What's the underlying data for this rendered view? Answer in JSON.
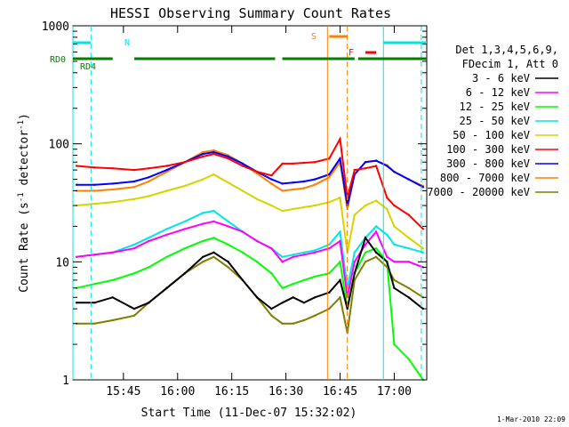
{
  "chart_data": {
    "type": "line",
    "title": "HESSI Observing Summary Count Rates",
    "xlabel": "Start Time (11-Dec-07 15:32:02)",
    "ylabel_main": "Count Rate (s",
    "ylabel_sup1": "-1",
    "ylabel_mid": " detector",
    "ylabel_sup2": "-1",
    "ylabel_end": ")",
    "y_scale": "log",
    "ylim": [
      1,
      1000
    ],
    "xlim_minutes": [
      15.533,
      18.267
    ],
    "x_range_minutes_note": "x values are minutes after 15:32:02 converted to clock time in ticks",
    "xticks": [
      {
        "value": 13,
        "label": "15:45"
      },
      {
        "value": 28,
        "label": "16:00"
      },
      {
        "value": 43,
        "label": "16:15"
      },
      {
        "value": 58,
        "label": "16:30"
      },
      {
        "value": 73,
        "label": "16:45"
      },
      {
        "value": 88,
        "label": "17:00"
      }
    ],
    "yticks": [
      {
        "value": 1,
        "label": "1"
      },
      {
        "value": 10,
        "label": "10"
      },
      {
        "value": 100,
        "label": "100"
      },
      {
        "value": 1000,
        "label": "1000"
      }
    ],
    "x_domain": [
      -1,
      97
    ],
    "legend_placement": "right",
    "legend_header": [
      "Det 1,3,4,5,6,9,",
      "FDecim 1, Att 0"
    ],
    "footer_date": "1-Mar-2010 22:09",
    "flags": [
      {
        "label": "N",
        "color": "#00e5e5"
      },
      {
        "label": "S",
        "color": "#ff8000"
      },
      {
        "label": "F",
        "color": "#ff0000"
      },
      {
        "label": "RD0",
        "color": "#007f00"
      },
      {
        "label": "RD4",
        "color": "#007f00"
      }
    ],
    "series": [
      {
        "name": "3 - 6 keV",
        "color": "#000000",
        "x": [
          0,
          5,
          10,
          16,
          20,
          25,
          30,
          35,
          38,
          42,
          46,
          50,
          54,
          57,
          60,
          63,
          66,
          70,
          73,
          75,
          77,
          80,
          83,
          86,
          88,
          92,
          96
        ],
        "y": [
          4.5,
          4.5,
          5,
          4,
          4.5,
          6,
          8,
          11,
          12,
          10,
          7,
          5,
          4,
          4.5,
          5,
          4.5,
          5,
          5.5,
          7,
          4,
          8,
          16,
          12,
          10,
          6,
          5,
          4
        ]
      },
      {
        "name": "6 - 12 keV",
        "color": "#ff00ff",
        "x": [
          0,
          5,
          10,
          16,
          20,
          25,
          30,
          35,
          38,
          42,
          46,
          50,
          54,
          57,
          60,
          63,
          66,
          70,
          73,
          75,
          77,
          80,
          83,
          86,
          88,
          92,
          96
        ],
        "y": [
          11,
          11.5,
          12,
          13,
          15,
          17,
          19,
          21,
          22,
          20,
          18,
          15,
          13,
          10,
          11,
          11.5,
          12,
          13,
          15,
          5,
          10,
          14,
          18,
          11,
          10,
          10,
          9
        ]
      },
      {
        "name": "12 - 25 keV",
        "color": "#00ff00",
        "x": [
          0,
          5,
          10,
          16,
          20,
          25,
          30,
          35,
          38,
          42,
          46,
          50,
          54,
          57,
          60,
          63,
          66,
          70,
          73,
          75,
          77,
          80,
          83,
          86,
          88,
          92,
          96
        ],
        "y": [
          6,
          6.5,
          7,
          8,
          9,
          11,
          13,
          15,
          16,
          14,
          12,
          10,
          8,
          6,
          6.5,
          7,
          7.5,
          8,
          10,
          4,
          8,
          12,
          13,
          10,
          2,
          1.5,
          1
        ]
      },
      {
        "name": "25 - 50 keV",
        "color": "#00e5e5",
        "x": [
          0,
          5,
          10,
          16,
          20,
          25,
          30,
          35,
          38,
          42,
          46,
          50,
          54,
          57,
          60,
          63,
          66,
          70,
          73,
          75,
          77,
          80,
          83,
          86,
          88,
          92,
          96
        ],
        "y": [
          11,
          11.5,
          12,
          14,
          16,
          19,
          22,
          26,
          27,
          22,
          18,
          15,
          13,
          11,
          11.5,
          12,
          12.5,
          14,
          18,
          6,
          12,
          16,
          20,
          17,
          14,
          13,
          12
        ]
      },
      {
        "name": "50 - 100 keV",
        "color": "#d4d400",
        "x": [
          0,
          5,
          10,
          16,
          20,
          25,
          30,
          35,
          38,
          42,
          46,
          50,
          54,
          57,
          60,
          63,
          66,
          70,
          73,
          75,
          77,
          80,
          83,
          86,
          88,
          92,
          96
        ],
        "y": [
          30,
          31,
          32,
          34,
          36,
          40,
          44,
          50,
          55,
          47,
          40,
          34,
          30,
          27,
          28,
          29,
          30,
          32,
          35,
          12,
          25,
          30,
          33,
          28,
          20,
          16,
          13
        ]
      },
      {
        "name": "100 - 300 keV",
        "color": "#ff0000",
        "x": [
          0,
          5,
          10,
          16,
          20,
          25,
          30,
          35,
          38,
          42,
          46,
          50,
          54,
          57,
          60,
          63,
          66,
          70,
          73,
          75,
          77,
          80,
          83,
          86,
          88,
          92,
          96
        ],
        "y": [
          65,
          63,
          62,
          60,
          62,
          65,
          70,
          78,
          82,
          75,
          65,
          58,
          54,
          68,
          68,
          69,
          70,
          75,
          110,
          35,
          60,
          62,
          65,
          35,
          30,
          25,
          19
        ]
      },
      {
        "name": "300 - 800 keV",
        "color": "#0000ff",
        "x": [
          0,
          5,
          10,
          16,
          20,
          25,
          30,
          35,
          38,
          42,
          46,
          50,
          54,
          57,
          60,
          63,
          66,
          70,
          73,
          75,
          77,
          80,
          83,
          86,
          88,
          92,
          96
        ],
        "y": [
          45,
          45,
          46,
          48,
          52,
          60,
          70,
          82,
          85,
          78,
          68,
          58,
          50,
          46,
          47,
          48,
          50,
          55,
          75,
          30,
          55,
          70,
          72,
          65,
          58,
          50,
          43
        ]
      },
      {
        "name": "800 - 7000 keV",
        "color": "#ff8000",
        "x": [
          0,
          5,
          10,
          16,
          20,
          25,
          30,
          35,
          38,
          42,
          46,
          50,
          54,
          57,
          60,
          63,
          66,
          70,
          73,
          75,
          77,
          80,
          83,
          86,
          88,
          92,
          96
        ],
        "y": [
          40,
          40,
          41,
          43,
          48,
          58,
          70,
          85,
          88,
          80,
          68,
          56,
          46,
          40,
          41,
          42,
          45,
          52,
          70,
          28,
          55,
          70,
          72,
          66,
          58,
          50,
          44
        ]
      },
      {
        "name": "7000 - 20000 keV",
        "color": "#7f7f00",
        "x": [
          0,
          5,
          10,
          16,
          20,
          25,
          30,
          35,
          38,
          42,
          46,
          50,
          54,
          57,
          60,
          63,
          66,
          70,
          73,
          75,
          77,
          80,
          83,
          86,
          88,
          92,
          96
        ],
        "y": [
          3,
          3,
          3.2,
          3.5,
          4.5,
          6,
          8,
          10,
          11,
          9,
          7,
          5,
          3.5,
          3,
          3,
          3.2,
          3.5,
          4,
          5,
          2.5,
          7,
          10,
          11,
          9,
          7,
          6,
          5
        ]
      }
    ]
  }
}
